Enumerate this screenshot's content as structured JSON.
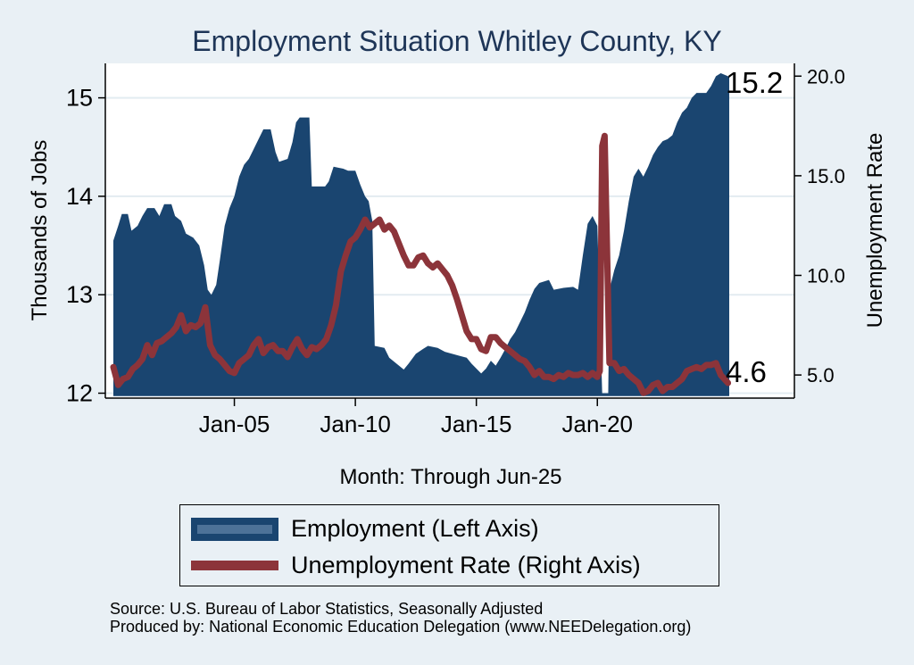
{
  "chart_data": {
    "type": "bar+line",
    "title": "Employment Situation Whitley  County, KY",
    "xlabel": "Month: Through Jun-25",
    "ylabel_left": "Thousands of Jobs",
    "ylabel_right": "Unemployment Rate",
    "x_range": [
      "Jan-00",
      "Jun-25"
    ],
    "x_tick_labels": [
      "Jan-05",
      "Jan-10",
      "Jan-15",
      "Jan-20"
    ],
    "left_axis": {
      "ylim": [
        11.95,
        15.35
      ],
      "ticks": [
        12,
        13,
        14,
        15
      ]
    },
    "right_axis": {
      "ylim": [
        3.84,
        20.64
      ],
      "ticks": [
        "5.0",
        "10.0",
        "15.0",
        "20.0"
      ]
    },
    "grid": true,
    "end_labels": {
      "employment": "15.2",
      "unemployment": "4.6"
    },
    "series": [
      {
        "name": "Employment (Left Axis)",
        "axis": "left",
        "style": "bar",
        "color": "#1a4570",
        "points": [
          [
            2000.0,
            13.55
          ],
          [
            2000.2,
            13.7
          ],
          [
            2000.35,
            13.82
          ],
          [
            2000.6,
            13.82
          ],
          [
            2000.75,
            13.65
          ],
          [
            2001.0,
            13.7
          ],
          [
            2001.2,
            13.8
          ],
          [
            2001.4,
            13.88
          ],
          [
            2001.7,
            13.88
          ],
          [
            2001.9,
            13.8
          ],
          [
            2002.1,
            13.92
          ],
          [
            2002.4,
            13.92
          ],
          [
            2002.55,
            13.8
          ],
          [
            2002.8,
            13.75
          ],
          [
            2003.0,
            13.62
          ],
          [
            2003.3,
            13.58
          ],
          [
            2003.55,
            13.5
          ],
          [
            2003.75,
            13.3
          ],
          [
            2003.9,
            13.05
          ],
          [
            2004.05,
            13.0
          ],
          [
            2004.25,
            13.1
          ],
          [
            2004.4,
            13.35
          ],
          [
            2004.6,
            13.7
          ],
          [
            2004.8,
            13.88
          ],
          [
            2005.0,
            14.0
          ],
          [
            2005.2,
            14.2
          ],
          [
            2005.4,
            14.32
          ],
          [
            2005.6,
            14.38
          ],
          [
            2005.8,
            14.48
          ],
          [
            2006.0,
            14.58
          ],
          [
            2006.2,
            14.68
          ],
          [
            2006.5,
            14.68
          ],
          [
            2006.7,
            14.45
          ],
          [
            2006.85,
            14.35
          ],
          [
            2007.2,
            14.38
          ],
          [
            2007.4,
            14.55
          ],
          [
            2007.55,
            14.75
          ],
          [
            2007.7,
            14.8
          ],
          [
            2008.1,
            14.8
          ],
          [
            2008.2,
            14.1
          ],
          [
            2008.75,
            14.1
          ],
          [
            2008.9,
            14.15
          ],
          [
            2009.1,
            14.3
          ],
          [
            2009.5,
            14.28
          ],
          [
            2009.7,
            14.26
          ],
          [
            2010.0,
            14.26
          ],
          [
            2010.2,
            14.12
          ],
          [
            2010.4,
            14.0
          ],
          [
            2010.55,
            13.95
          ],
          [
            2010.7,
            13.75
          ],
          [
            2010.8,
            12.48
          ],
          [
            2011.2,
            12.46
          ],
          [
            2011.4,
            12.36
          ],
          [
            2011.7,
            12.3
          ],
          [
            2012.0,
            12.24
          ],
          [
            2012.2,
            12.3
          ],
          [
            2012.5,
            12.4
          ],
          [
            2012.8,
            12.45
          ],
          [
            2013.0,
            12.48
          ],
          [
            2013.4,
            12.46
          ],
          [
            2013.7,
            12.42
          ],
          [
            2014.0,
            12.4
          ],
          [
            2014.3,
            12.38
          ],
          [
            2014.6,
            12.36
          ],
          [
            2014.8,
            12.3
          ],
          [
            2015.0,
            12.25
          ],
          [
            2015.2,
            12.2
          ],
          [
            2015.4,
            12.25
          ],
          [
            2015.6,
            12.33
          ],
          [
            2015.8,
            12.28
          ],
          [
            2016.0,
            12.36
          ],
          [
            2016.2,
            12.45
          ],
          [
            2016.4,
            12.55
          ],
          [
            2016.6,
            12.62
          ],
          [
            2016.8,
            12.72
          ],
          [
            2017.0,
            12.82
          ],
          [
            2017.2,
            12.95
          ],
          [
            2017.4,
            13.06
          ],
          [
            2017.6,
            13.12
          ],
          [
            2018.0,
            13.15
          ],
          [
            2018.2,
            13.05
          ],
          [
            2018.6,
            13.07
          ],
          [
            2019.0,
            13.08
          ],
          [
            2019.2,
            13.05
          ],
          [
            2019.4,
            13.4
          ],
          [
            2019.6,
            13.72
          ],
          [
            2019.8,
            13.8
          ],
          [
            2020.0,
            13.7
          ],
          [
            2020.2,
            12.0
          ],
          [
            2020.45,
            12.0
          ],
          [
            2020.5,
            13.05
          ],
          [
            2020.7,
            13.25
          ],
          [
            2020.9,
            13.4
          ],
          [
            2021.1,
            13.65
          ],
          [
            2021.3,
            13.95
          ],
          [
            2021.5,
            14.2
          ],
          [
            2021.7,
            14.28
          ],
          [
            2021.9,
            14.2
          ],
          [
            2022.1,
            14.3
          ],
          [
            2022.3,
            14.42
          ],
          [
            2022.5,
            14.5
          ],
          [
            2022.7,
            14.56
          ],
          [
            2022.9,
            14.58
          ],
          [
            2023.1,
            14.62
          ],
          [
            2023.3,
            14.75
          ],
          [
            2023.5,
            14.85
          ],
          [
            2023.7,
            14.9
          ],
          [
            2023.9,
            15.0
          ],
          [
            2024.1,
            15.05
          ],
          [
            2024.5,
            15.05
          ],
          [
            2024.7,
            15.12
          ],
          [
            2024.9,
            15.22
          ],
          [
            2025.1,
            15.25
          ],
          [
            2025.4,
            15.22
          ]
        ]
      },
      {
        "name": "Unemployment Rate (Right Axis)",
        "axis": "right",
        "style": "line",
        "color": "#8c343a",
        "points": [
          [
            2000.0,
            5.4
          ],
          [
            2000.2,
            4.5
          ],
          [
            2000.4,
            4.8
          ],
          [
            2000.6,
            4.9
          ],
          [
            2000.8,
            5.3
          ],
          [
            2001.0,
            5.5
          ],
          [
            2001.2,
            5.8
          ],
          [
            2001.4,
            6.5
          ],
          [
            2001.6,
            6.0
          ],
          [
            2001.8,
            6.6
          ],
          [
            2002.0,
            6.7
          ],
          [
            2002.2,
            6.9
          ],
          [
            2002.4,
            7.1
          ],
          [
            2002.6,
            7.4
          ],
          [
            2002.8,
            8.0
          ],
          [
            2003.0,
            7.2
          ],
          [
            2003.2,
            7.5
          ],
          [
            2003.4,
            7.4
          ],
          [
            2003.6,
            7.6
          ],
          [
            2003.8,
            8.4
          ],
          [
            2004.0,
            6.5
          ],
          [
            2004.2,
            6.0
          ],
          [
            2004.4,
            5.8
          ],
          [
            2004.6,
            5.5
          ],
          [
            2004.8,
            5.2
          ],
          [
            2005.0,
            5.1
          ],
          [
            2005.2,
            5.6
          ],
          [
            2005.4,
            5.8
          ],
          [
            2005.6,
            6.0
          ],
          [
            2005.8,
            6.5
          ],
          [
            2006.0,
            6.8
          ],
          [
            2006.2,
            6.1
          ],
          [
            2006.4,
            6.4
          ],
          [
            2006.6,
            6.5
          ],
          [
            2006.8,
            6.2
          ],
          [
            2007.0,
            6.2
          ],
          [
            2007.2,
            5.9
          ],
          [
            2007.4,
            6.4
          ],
          [
            2007.6,
            6.8
          ],
          [
            2007.8,
            6.3
          ],
          [
            2008.0,
            6.0
          ],
          [
            2008.2,
            6.4
          ],
          [
            2008.4,
            6.3
          ],
          [
            2008.6,
            6.5
          ],
          [
            2008.8,
            6.8
          ],
          [
            2009.0,
            7.5
          ],
          [
            2009.2,
            8.5
          ],
          [
            2009.4,
            10.2
          ],
          [
            2009.6,
            11.0
          ],
          [
            2009.8,
            11.7
          ],
          [
            2010.0,
            11.9
          ],
          [
            2010.2,
            12.3
          ],
          [
            2010.4,
            12.8
          ],
          [
            2010.6,
            12.4
          ],
          [
            2010.8,
            12.6
          ],
          [
            2011.0,
            12.8
          ],
          [
            2011.2,
            12.3
          ],
          [
            2011.4,
            12.5
          ],
          [
            2011.6,
            12.2
          ],
          [
            2011.8,
            11.6
          ],
          [
            2012.0,
            11.0
          ],
          [
            2012.2,
            10.5
          ],
          [
            2012.4,
            10.5
          ],
          [
            2012.6,
            10.9
          ],
          [
            2012.8,
            11.0
          ],
          [
            2013.0,
            10.6
          ],
          [
            2013.2,
            10.4
          ],
          [
            2013.4,
            10.6
          ],
          [
            2013.6,
            10.3
          ],
          [
            2013.8,
            10.0
          ],
          [
            2014.0,
            9.5
          ],
          [
            2014.2,
            8.8
          ],
          [
            2014.4,
            8.0
          ],
          [
            2014.6,
            7.2
          ],
          [
            2014.8,
            6.8
          ],
          [
            2015.0,
            6.8
          ],
          [
            2015.2,
            6.3
          ],
          [
            2015.4,
            6.2
          ],
          [
            2015.6,
            6.9
          ],
          [
            2015.8,
            6.9
          ],
          [
            2016.0,
            6.6
          ],
          [
            2016.2,
            6.4
          ],
          [
            2016.4,
            6.2
          ],
          [
            2016.6,
            6.0
          ],
          [
            2016.8,
            5.8
          ],
          [
            2017.0,
            5.7
          ],
          [
            2017.2,
            5.4
          ],
          [
            2017.4,
            5.0
          ],
          [
            2017.6,
            5.2
          ],
          [
            2017.8,
            4.9
          ],
          [
            2018.0,
            4.9
          ],
          [
            2018.2,
            4.8
          ],
          [
            2018.4,
            5.0
          ],
          [
            2018.6,
            4.9
          ],
          [
            2018.8,
            5.1
          ],
          [
            2019.0,
            5.0
          ],
          [
            2019.2,
            5.0
          ],
          [
            2019.4,
            5.1
          ],
          [
            2019.6,
            4.9
          ],
          [
            2019.8,
            5.1
          ],
          [
            2020.0,
            4.9
          ],
          [
            2020.1,
            5.2
          ],
          [
            2020.2,
            16.5
          ],
          [
            2020.3,
            17.0
          ],
          [
            2020.5,
            5.6
          ],
          [
            2020.7,
            5.6
          ],
          [
            2020.9,
            5.2
          ],
          [
            2021.1,
            5.3
          ],
          [
            2021.3,
            5.0
          ],
          [
            2021.5,
            4.8
          ],
          [
            2021.7,
            4.6
          ],
          [
            2021.9,
            4.1
          ],
          [
            2022.1,
            4.2
          ],
          [
            2022.3,
            4.5
          ],
          [
            2022.5,
            4.6
          ],
          [
            2022.7,
            4.2
          ],
          [
            2022.9,
            4.4
          ],
          [
            2023.1,
            4.4
          ],
          [
            2023.3,
            4.6
          ],
          [
            2023.5,
            4.8
          ],
          [
            2023.7,
            5.2
          ],
          [
            2023.9,
            5.3
          ],
          [
            2024.1,
            5.4
          ],
          [
            2024.3,
            5.3
          ],
          [
            2024.5,
            5.5
          ],
          [
            2024.7,
            5.5
          ],
          [
            2024.9,
            5.6
          ],
          [
            2025.1,
            5.0
          ],
          [
            2025.4,
            4.6
          ]
        ]
      }
    ]
  },
  "legend": {
    "employment_label": "Employment (Left Axis)",
    "unemployment_label": "Unemployment Rate (Right Axis)"
  },
  "source": {
    "line1": "Source: U.S. Bureau of Labor Statistics, Seasonally Adjusted",
    "line2": "Produced by: National Economic Education Delegation (www.NEEDelegation.org)"
  }
}
